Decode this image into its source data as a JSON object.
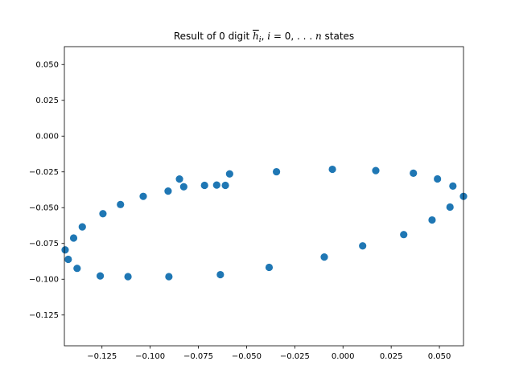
{
  "chart_data": {
    "type": "scatter",
    "title_parts": [
      "Result of 0 digit ",
      "h",
      "i",
      ", ",
      "i",
      " = 0, . . . ",
      "n",
      " states"
    ],
    "xlabel": "",
    "ylabel": "",
    "xlim": [
      -0.1445,
      0.0625
    ],
    "ylim": [
      -0.1465,
      0.0625
    ],
    "xticks": [
      -0.125,
      -0.1,
      -0.075,
      -0.05,
      -0.025,
      0.0,
      0.025,
      0.05
    ],
    "xtick_labels": [
      "−0.125",
      "−0.100",
      "−0.075",
      "−0.050",
      "−0.025",
      "0.000",
      "0.025",
      "0.050"
    ],
    "yticks": [
      0.05,
      0.025,
      0.0,
      -0.025,
      -0.05,
      -0.075,
      -0.1,
      -0.125
    ],
    "ytick_labels": [
      "0.050",
      "0.025",
      "0.000",
      "−0.025",
      "−0.050",
      "−0.075",
      "−0.100",
      "−0.125"
    ],
    "grid": false,
    "marker_color": "#1f77b4",
    "points": [
      {
        "x": -0.1441,
        "y": -0.0795
      },
      {
        "x": -0.1425,
        "y": -0.0861
      },
      {
        "x": -0.1397,
        "y": -0.0712
      },
      {
        "x": -0.1379,
        "y": -0.0924
      },
      {
        "x": -0.1352,
        "y": -0.0634
      },
      {
        "x": -0.1259,
        "y": -0.0977
      },
      {
        "x": -0.1245,
        "y": -0.0542
      },
      {
        "x": -0.1154,
        "y": -0.0478
      },
      {
        "x": -0.1115,
        "y": -0.0982
      },
      {
        "x": -0.1036,
        "y": -0.0421
      },
      {
        "x": -0.0907,
        "y": -0.0384
      },
      {
        "x": -0.0903,
        "y": -0.0982
      },
      {
        "x": -0.0848,
        "y": -0.03
      },
      {
        "x": -0.0826,
        "y": -0.0354
      },
      {
        "x": -0.0718,
        "y": -0.0344
      },
      {
        "x": -0.0655,
        "y": -0.0342
      },
      {
        "x": -0.0636,
        "y": -0.0968
      },
      {
        "x": -0.061,
        "y": -0.0344
      },
      {
        "x": -0.0588,
        "y": -0.0264
      },
      {
        "x": -0.0383,
        "y": -0.0917
      },
      {
        "x": -0.0345,
        "y": -0.0249
      },
      {
        "x": -0.0097,
        "y": -0.0845
      },
      {
        "x": -0.0055,
        "y": -0.0232
      },
      {
        "x": 0.0102,
        "y": -0.0767
      },
      {
        "x": 0.017,
        "y": -0.0241
      },
      {
        "x": 0.0315,
        "y": -0.0688
      },
      {
        "x": 0.0365,
        "y": -0.0259
      },
      {
        "x": 0.0462,
        "y": -0.0586
      },
      {
        "x": 0.049,
        "y": -0.0299
      },
      {
        "x": 0.0555,
        "y": -0.0496
      },
      {
        "x": 0.057,
        "y": -0.0349
      },
      {
        "x": 0.0625,
        "y": -0.0421
      }
    ]
  }
}
